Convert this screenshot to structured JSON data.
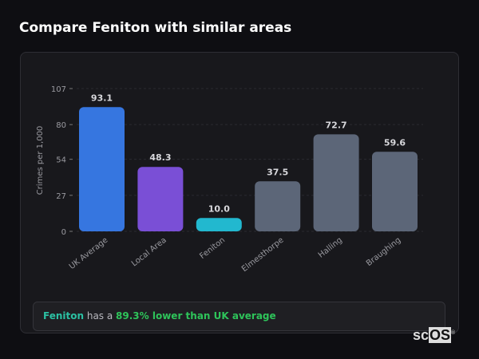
{
  "page_title": "Compare Feniton with similar areas",
  "chart_data": {
    "type": "bar",
    "categories": [
      "UK Average",
      "Local Area",
      "Feniton",
      "Elmesthorpe",
      "Halling",
      "Braughing"
    ],
    "values": [
      93.1,
      48.3,
      10.0,
      37.5,
      72.7,
      59.6
    ],
    "value_labels": [
      "93.1",
      "48.3",
      "10.0",
      "37.5",
      "72.7",
      "59.6"
    ],
    "colors": [
      "#3676e0",
      "#7a4fd6",
      "#22b8cf",
      "#5c6678",
      "#5c6678",
      "#5c6678"
    ],
    "ylabel": "Crimes per 1,000",
    "xlabel": "",
    "ylim": [
      0,
      107
    ],
    "yticks": [
      0,
      27,
      54,
      80,
      107
    ],
    "grid": true
  },
  "summary": {
    "area": "Feniton",
    "middle": " has a ",
    "comparison": "89.3% lower than UK average"
  },
  "logo": {
    "text_a": "sc",
    "text_b": "OS",
    "mark": "®"
  }
}
